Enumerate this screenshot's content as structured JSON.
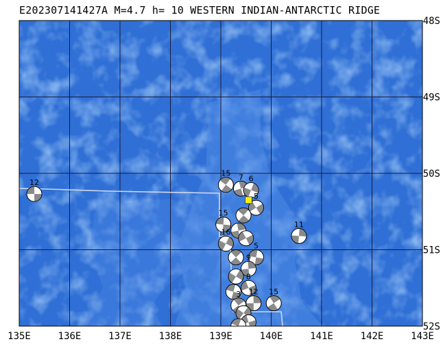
{
  "title": "E202307141427A M=4.7 h= 10 WESTERN INDIAN-ANTARCTIC RIDGE",
  "map": {
    "lon_range": [
      135,
      143
    ],
    "lat_range": [
      -52,
      -48
    ],
    "lon_labels": [
      "135E",
      "136E",
      "137E",
      "138E",
      "139E",
      "140E",
      "141E",
      "142E",
      "143E"
    ],
    "lat_labels": [
      "48S",
      "49S",
      "50S",
      "51S",
      "52S"
    ],
    "colors": {
      "ocean_deep": "#2f6fd6",
      "ocean_shallow": "#4f8ae6",
      "grid": "#1b1b3a",
      "plate_boundary": "#cfd8ee",
      "event": "#ffee00"
    }
  },
  "main_event": {
    "lon": 139.55,
    "lat": -50.35
  },
  "events": [
    {
      "lon": 135.3,
      "lat": -50.27,
      "label": "12"
    },
    {
      "lon": 139.1,
      "lat": -50.15,
      "label": "15"
    },
    {
      "lon": 139.4,
      "lat": -50.2,
      "label": "7"
    },
    {
      "lon": 139.6,
      "lat": -50.22,
      "label": "6"
    },
    {
      "lon": 139.7,
      "lat": -50.45,
      "label": "5"
    },
    {
      "lon": 139.05,
      "lat": -50.67,
      "label": "15"
    },
    {
      "lon": 139.45,
      "lat": -50.55,
      "label": ""
    },
    {
      "lon": 139.35,
      "lat": -50.75,
      "label": ""
    },
    {
      "lon": 139.1,
      "lat": -50.92,
      "label": "16"
    },
    {
      "lon": 139.5,
      "lat": -50.85,
      "label": ""
    },
    {
      "lon": 139.7,
      "lat": -51.1,
      "label": "5"
    },
    {
      "lon": 139.3,
      "lat": -51.1,
      "label": ""
    },
    {
      "lon": 139.55,
      "lat": -51.25,
      "label": "9"
    },
    {
      "lon": 139.3,
      "lat": -51.35,
      "label": ""
    },
    {
      "lon": 139.55,
      "lat": -51.5,
      "label": "8"
    },
    {
      "lon": 139.25,
      "lat": -51.55,
      "label": ""
    },
    {
      "lon": 139.35,
      "lat": -51.73,
      "label": "3"
    },
    {
      "lon": 139.65,
      "lat": -51.7,
      "label": "12"
    },
    {
      "lon": 139.45,
      "lat": -51.83,
      "label": ""
    },
    {
      "lon": 139.55,
      "lat": -51.95,
      "label": ""
    },
    {
      "lon": 139.35,
      "lat": -52.0,
      "label": ""
    },
    {
      "lon": 140.05,
      "lat": -51.7,
      "label": "15"
    },
    {
      "lon": 140.55,
      "lat": -50.82,
      "label": "11"
    }
  ]
}
